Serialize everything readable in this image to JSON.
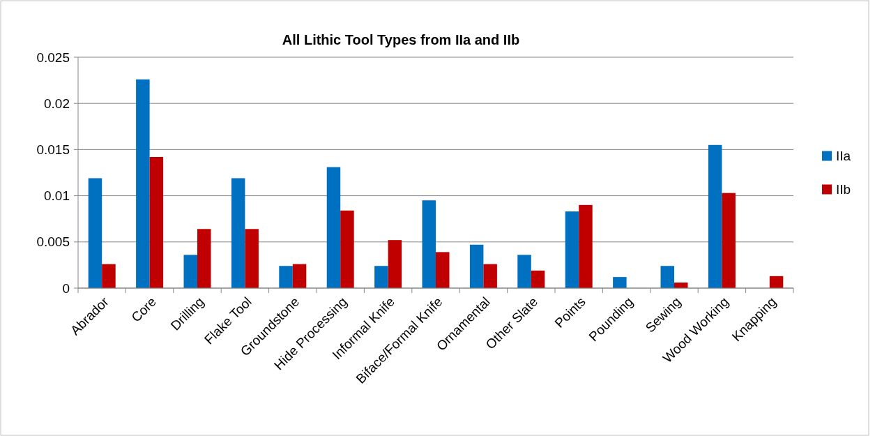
{
  "chart_data": {
    "type": "bar",
    "title": "All Lithic Tool Types from IIa and IIb",
    "categories": [
      "Abrador",
      "Core",
      "Drilling",
      "Flake Tool",
      "Groundstone",
      "Hide Processing",
      "Informal Knife",
      "Biface/Formal Knife",
      "Ornamental",
      "Other Slate",
      "Points",
      "Pounding",
      "Sewing",
      "Wood Working",
      "Knapping"
    ],
    "series": [
      {
        "name": "IIa",
        "color": "#0070c0",
        "values": [
          0.0119,
          0.0226,
          0.0036,
          0.0119,
          0.0024,
          0.0131,
          0.0024,
          0.0095,
          0.0047,
          0.0036,
          0.0083,
          0.0012,
          0.0024,
          0.0155,
          0
        ]
      },
      {
        "name": "IIb",
        "color": "#c00000",
        "values": [
          0.0026,
          0.0142,
          0.0064,
          0.0064,
          0.0026,
          0.0084,
          0.0052,
          0.0039,
          0.0026,
          0.0019,
          0.009,
          0,
          0.0006,
          0.0103,
          0.0013
        ]
      }
    ],
    "ylim": [
      0,
      0.025
    ],
    "yticks": [
      0,
      0.005,
      0.01,
      0.015,
      0.02,
      0.025
    ],
    "grid": "y",
    "legend": "right"
  }
}
